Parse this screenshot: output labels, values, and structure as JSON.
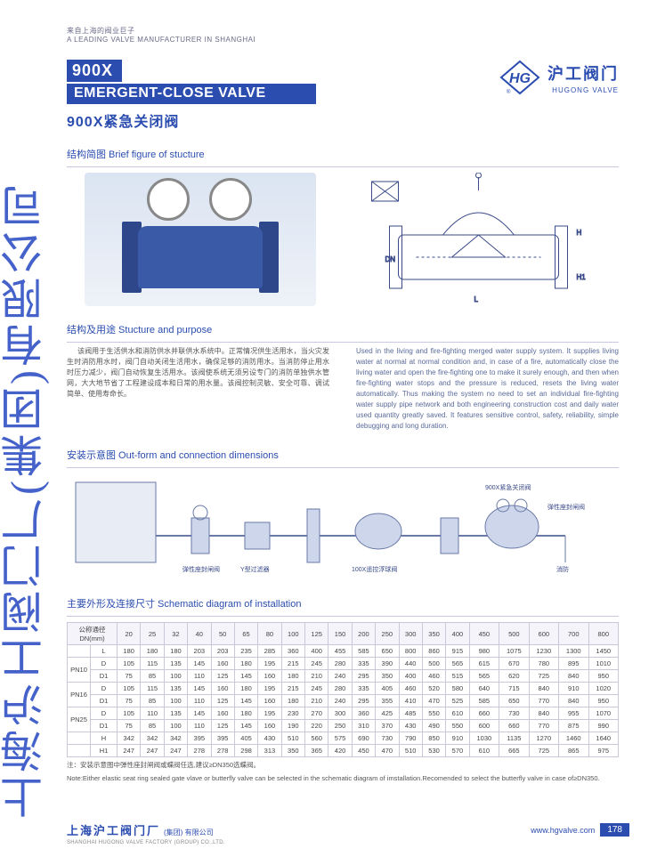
{
  "meta": {
    "tagline_cn": "来自上海的阀业巨子",
    "tagline_en": "A LEADING VALVE MANUFACTURER IN SHANGHAI"
  },
  "title": {
    "code": "900X",
    "name_en": "EMERGENT-CLOSE VALVE",
    "name_cn": "900X紧急关闭阀"
  },
  "brand": {
    "logo_text": "HG",
    "name_cn": "沪工阀门",
    "name_en": "HUGONG VALVE",
    "logo_bg": "#ffffff",
    "logo_stroke": "#2b4db0"
  },
  "sections": {
    "figure": "结构简图  Brief figure of stucture",
    "purpose": "结构及用途  Stucture and purpose",
    "install": "安装示意图  Out-form and connection dimensions",
    "table": "主要外形及连接尺寸  Schematic diagram of installation"
  },
  "purpose_text": {
    "cn": "该阀用于生活供水和消防供水并联供水系统中。正常情况供生活用水，当火灾发生时消防用水时，阀门自动关闭生活用水，确保足够的消防用水。当消防停止用水时压力减少，阀门自动恢复生活用水。该阀使系统无须另设专门的消防单独供水管网，大大地节省了工程建设成本和日常的用水量。该阀控制灵敏、安全可靠、调试简单、使用寿命长。",
    "en": "Used in the living and fire-fighting merged water supply system. It supplies living water at normal at normal condition and, in case of a fire, automatically close the living water and open the fire-fighting one to make it surely enough, and then when fire-fighting water stops and the pressure is reduced, resets the living water automatically. Thus making the system no need to set an individual fire-fighting water supply pipe network and both engineering construction cost and daily water used quantity greatly saved. It features sensitive control, safety, reliability, simple debugging and long duration."
  },
  "install_labels": {
    "a": "弹性座封闸阀",
    "b": "Y型过滤器",
    "c": "100X遥控浮球阀",
    "d": "弹性座封闸阀",
    "e": "900X紧急关闭阀",
    "f": "消防"
  },
  "table": {
    "header_dn": "公称通径\nDN(mm)",
    "dn": [
      "20",
      "25",
      "32",
      "40",
      "50",
      "65",
      "80",
      "100",
      "125",
      "150",
      "200",
      "250",
      "300",
      "350",
      "400",
      "450",
      "500",
      "600",
      "700",
      "800"
    ],
    "rows": [
      {
        "pn": "",
        "k": "L",
        "v": [
          "180",
          "180",
          "180",
          "203",
          "203",
          "235",
          "285",
          "360",
          "400",
          "455",
          "585",
          "650",
          "800",
          "860",
          "915",
          "980",
          "1075",
          "1230",
          "1300",
          "1450"
        ]
      },
      {
        "pn": "PN10",
        "k": "D",
        "v": [
          "105",
          "115",
          "135",
          "145",
          "160",
          "180",
          "195",
          "215",
          "245",
          "280",
          "335",
          "390",
          "440",
          "500",
          "565",
          "615",
          "670",
          "780",
          "895",
          "1010"
        ]
      },
      {
        "pn": "",
        "k": "D1",
        "v": [
          "75",
          "85",
          "100",
          "110",
          "125",
          "145",
          "160",
          "180",
          "210",
          "240",
          "295",
          "350",
          "400",
          "460",
          "515",
          "565",
          "620",
          "725",
          "840",
          "950"
        ]
      },
      {
        "pn": "PN16",
        "k": "D",
        "v": [
          "105",
          "115",
          "135",
          "145",
          "160",
          "180",
          "195",
          "215",
          "245",
          "280",
          "335",
          "405",
          "460",
          "520",
          "580",
          "640",
          "715",
          "840",
          "910",
          "1020"
        ]
      },
      {
        "pn": "",
        "k": "D1",
        "v": [
          "75",
          "85",
          "100",
          "110",
          "125",
          "145",
          "160",
          "180",
          "210",
          "240",
          "295",
          "355",
          "410",
          "470",
          "525",
          "585",
          "650",
          "770",
          "840",
          "950"
        ]
      },
      {
        "pn": "PN25",
        "k": "D",
        "v": [
          "105",
          "110",
          "135",
          "145",
          "160",
          "180",
          "195",
          "230",
          "270",
          "300",
          "360",
          "425",
          "485",
          "550",
          "610",
          "660",
          "730",
          "840",
          "955",
          "1070"
        ]
      },
      {
        "pn": "",
        "k": "D1",
        "v": [
          "75",
          "85",
          "100",
          "110",
          "125",
          "145",
          "160",
          "190",
          "220",
          "250",
          "310",
          "370",
          "430",
          "490",
          "550",
          "600",
          "660",
          "770",
          "875",
          "990"
        ]
      },
      {
        "pn": "",
        "k": "H",
        "v": [
          "342",
          "342",
          "342",
          "395",
          "395",
          "405",
          "430",
          "510",
          "560",
          "575",
          "690",
          "730",
          "790",
          "850",
          "910",
          "1030",
          "1135",
          "1270",
          "1460",
          "1640"
        ]
      },
      {
        "pn": "",
        "k": "H1",
        "v": [
          "247",
          "247",
          "247",
          "278",
          "278",
          "298",
          "313",
          "350",
          "365",
          "420",
          "450",
          "470",
          "510",
          "530",
          "570",
          "610",
          "665",
          "725",
          "865",
          "975"
        ]
      }
    ]
  },
  "note": {
    "cn": "注：安装示意图中弹性座封闸阀或蝶阀任选,建议≥DN350选蝶阀。",
    "en": "Note:Either elastic seat ring sealed gate vlave or butterfly valve can be selected in the schematic diagram of imstallation.Recomended to select the butterfly valve in case of≥DN350."
  },
  "footer": {
    "company_cn": "上海沪工阀门厂",
    "company_sub": "(集团) 有限公司",
    "company_en": "SHANGHAI HUGONG VALVE FACTORY (GROUP) CO.,LTD.",
    "url": "www.hgvalve.com",
    "page": "178"
  },
  "watermark": "上海沪工阀门厂(集团)有限公司",
  "colors": {
    "brand": "#2b4db0",
    "text": "#555555",
    "grid": "#c8c8d8",
    "bg": "#ffffff"
  }
}
